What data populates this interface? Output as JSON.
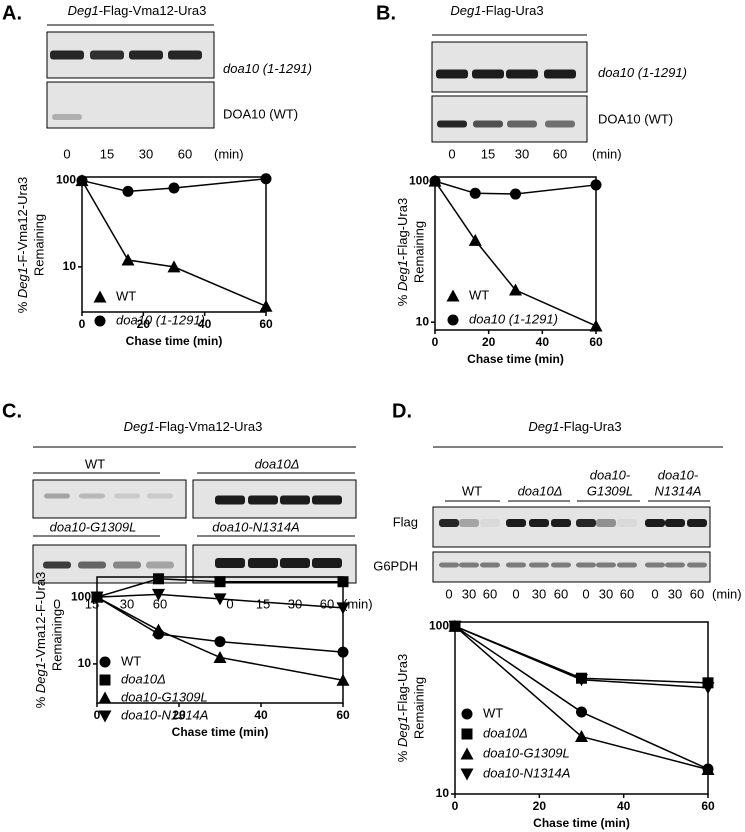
{
  "panels": [
    {
      "letter": "A.",
      "header": [
        {
          "text": "Deg1",
          "italic": true
        },
        {
          "text": "-Flag-Vma12-Ura3"
        }
      ],
      "blot_labels": [
        [
          {
            "text": "doa10 (1-1291)",
            "italic": true
          }
        ],
        "DOA10 (WT)"
      ],
      "lanes": [
        "0",
        "15",
        "30",
        "60"
      ],
      "unit": "(min)"
    },
    {
      "letter": "B.",
      "header": [
        {
          "text": "Deg1",
          "italic": true
        },
        {
          "text": "-Flag-Ura3"
        }
      ],
      "blot_labels": [
        [
          {
            "text": "doa10 (1-1291)",
            "italic": true
          }
        ],
        "DOA10 (WT)"
      ],
      "lanes": [
        "0",
        "15",
        "30",
        "60"
      ],
      "unit": "(min)"
    },
    {
      "letter": "C.",
      "header": [
        {
          "text": "Deg1",
          "italic": true
        },
        {
          "text": "-Flag-Vma12-Ura3"
        }
      ],
      "groups": [
        {
          "lines": [
            "WT"
          ]
        },
        {
          "lines": [
            "doa10Δ"
          ],
          "italic": true
        },
        {
          "lines": [
            "doa10-G1309L"
          ],
          "italic": true
        },
        {
          "lines": [
            "doa10-N1314A"
          ],
          "italic": true
        }
      ],
      "lanes": [
        "0",
        "15",
        "30",
        "60",
        "0",
        "15",
        "30",
        "60"
      ],
      "unit": "(min)"
    },
    {
      "letter": "D.",
      "header": [
        {
          "text": "Deg1",
          "italic": true
        },
        {
          "text": "-Flag-Ura3"
        }
      ],
      "groups": [
        {
          "lines": [
            "WT"
          ]
        },
        {
          "lines": [
            "doa10Δ"
          ],
          "italic": true
        },
        {
          "lines": [
            "doa10-",
            "G1309L"
          ],
          "italic": true
        },
        {
          "lines": [
            "doa10-",
            "N1314A"
          ],
          "italic": true
        }
      ],
      "blot_labels": [
        "Flag",
        "G6PDH"
      ],
      "lanes": [
        "0",
        "30",
        "60",
        "0",
        "30",
        "60",
        "0",
        "30",
        "60",
        "0",
        "30",
        "60"
      ],
      "unit": "(min)"
    }
  ],
  "chart_data": [
    {
      "type": "line",
      "log_y": true,
      "ylabel": [
        [
          {
            "text": "% "
          },
          {
            "text": "Deg1",
            "italic": true
          },
          {
            "text": "-F-Vma12-Ura3"
          }
        ],
        "Remaining"
      ],
      "xlabel": "Chase time (min)",
      "x": [
        0,
        15,
        30,
        60
      ],
      "xlim": [
        0,
        60
      ],
      "xticks": [
        0,
        20,
        40,
        60
      ],
      "ylim": [
        3,
        110
      ],
      "yticks": [
        10,
        100
      ],
      "series": [
        {
          "name": "WT",
          "color": "#000000",
          "marker": "triangle-up",
          "values": [
            100,
            12,
            10,
            3.5
          ]
        },
        {
          "name": "doa10 (1-1291)",
          "italic": true,
          "color": "#000000",
          "marker": "circle",
          "values": [
            100,
            75,
            82,
            105
          ]
        }
      ]
    },
    {
      "type": "line",
      "log_y": true,
      "ylabel": [
        [
          {
            "text": "% "
          },
          {
            "text": "Deg1",
            "italic": true
          },
          {
            "text": "-Flag-Ura3"
          }
        ],
        "Remaining"
      ],
      "xlabel": "Chase time (min)",
      "x": [
        0,
        15,
        30,
        60
      ],
      "xlim": [
        0,
        60
      ],
      "xticks": [
        0,
        20,
        40,
        60
      ],
      "ylim": [
        8.8,
        107
      ],
      "yticks": [
        10,
        100
      ],
      "series": [
        {
          "name": "WT",
          "color": "#000000",
          "marker": "triangle-up",
          "values": [
            100,
            38,
            16.9,
            9.4
          ]
        },
        {
          "name": "doa10 (1-1291)",
          "italic": true,
          "color": "#000000",
          "marker": "circle",
          "values": [
            100,
            82,
            81,
            94
          ]
        }
      ]
    },
    {
      "type": "line",
      "log_y": true,
      "ylabel": [
        [
          {
            "text": "% "
          },
          {
            "text": "Deg1",
            "italic": true
          },
          {
            "text": "-Vma12-F-Ura3"
          }
        ],
        "Remaining"
      ],
      "xlabel": "Chase time (min)",
      "x": [
        0,
        15,
        30,
        60
      ],
      "xlim": [
        0,
        60
      ],
      "xticks": [
        0,
        20,
        40,
        60
      ],
      "ylim": [
        2.6,
        200
      ],
      "yticks": [
        10,
        100
      ],
      "series": [
        {
          "name": "WT",
          "color": "#000000",
          "marker": "circle",
          "values": [
            100,
            28,
            21.6,
            15
          ]
        },
        {
          "name": "doa10Δ",
          "italic": true,
          "color": "#000000",
          "marker": "square",
          "values": [
            100,
            188,
            170,
            170
          ]
        },
        {
          "name": "doa10-G1309L",
          "italic": true,
          "color": "#000000",
          "marker": "triangle-up",
          "values": [
            100,
            32,
            12.5,
            5.7
          ]
        },
        {
          "name": "doa10-N1314A",
          "italic": true,
          "color": "#000000",
          "marker": "triangle-down",
          "values": [
            100,
            110,
            94,
            69
          ]
        }
      ]
    },
    {
      "type": "line",
      "log_y": true,
      "ylabel": [
        [
          {
            "text": "% "
          },
          {
            "text": "Deg1",
            "italic": true
          },
          {
            "text": "-Flag-Ura3"
          }
        ],
        "Remaining"
      ],
      "xlabel": "Chase time (min)",
      "x": [
        0,
        30,
        60
      ],
      "xlim": [
        0,
        60
      ],
      "xticks": [
        0,
        20,
        40,
        60
      ],
      "ylim": [
        10,
        106
      ],
      "yticks": [
        10,
        100
      ],
      "series": [
        {
          "name": "WT",
          "color": "#000000",
          "marker": "circle",
          "values": [
            100,
            30.8,
            14.1
          ]
        },
        {
          "name": "doa10Δ",
          "italic": true,
          "color": "#000000",
          "marker": "square",
          "values": [
            100,
            49,
            46
          ]
        },
        {
          "name": "doa10-G1309L",
          "italic": true,
          "color": "#000000",
          "marker": "triangle-up",
          "values": [
            100,
            22,
            14
          ]
        },
        {
          "name": "doa10-N1314A",
          "italic": true,
          "color": "#000000",
          "marker": "triangle-down",
          "values": [
            100,
            48,
            43
          ]
        }
      ]
    }
  ]
}
